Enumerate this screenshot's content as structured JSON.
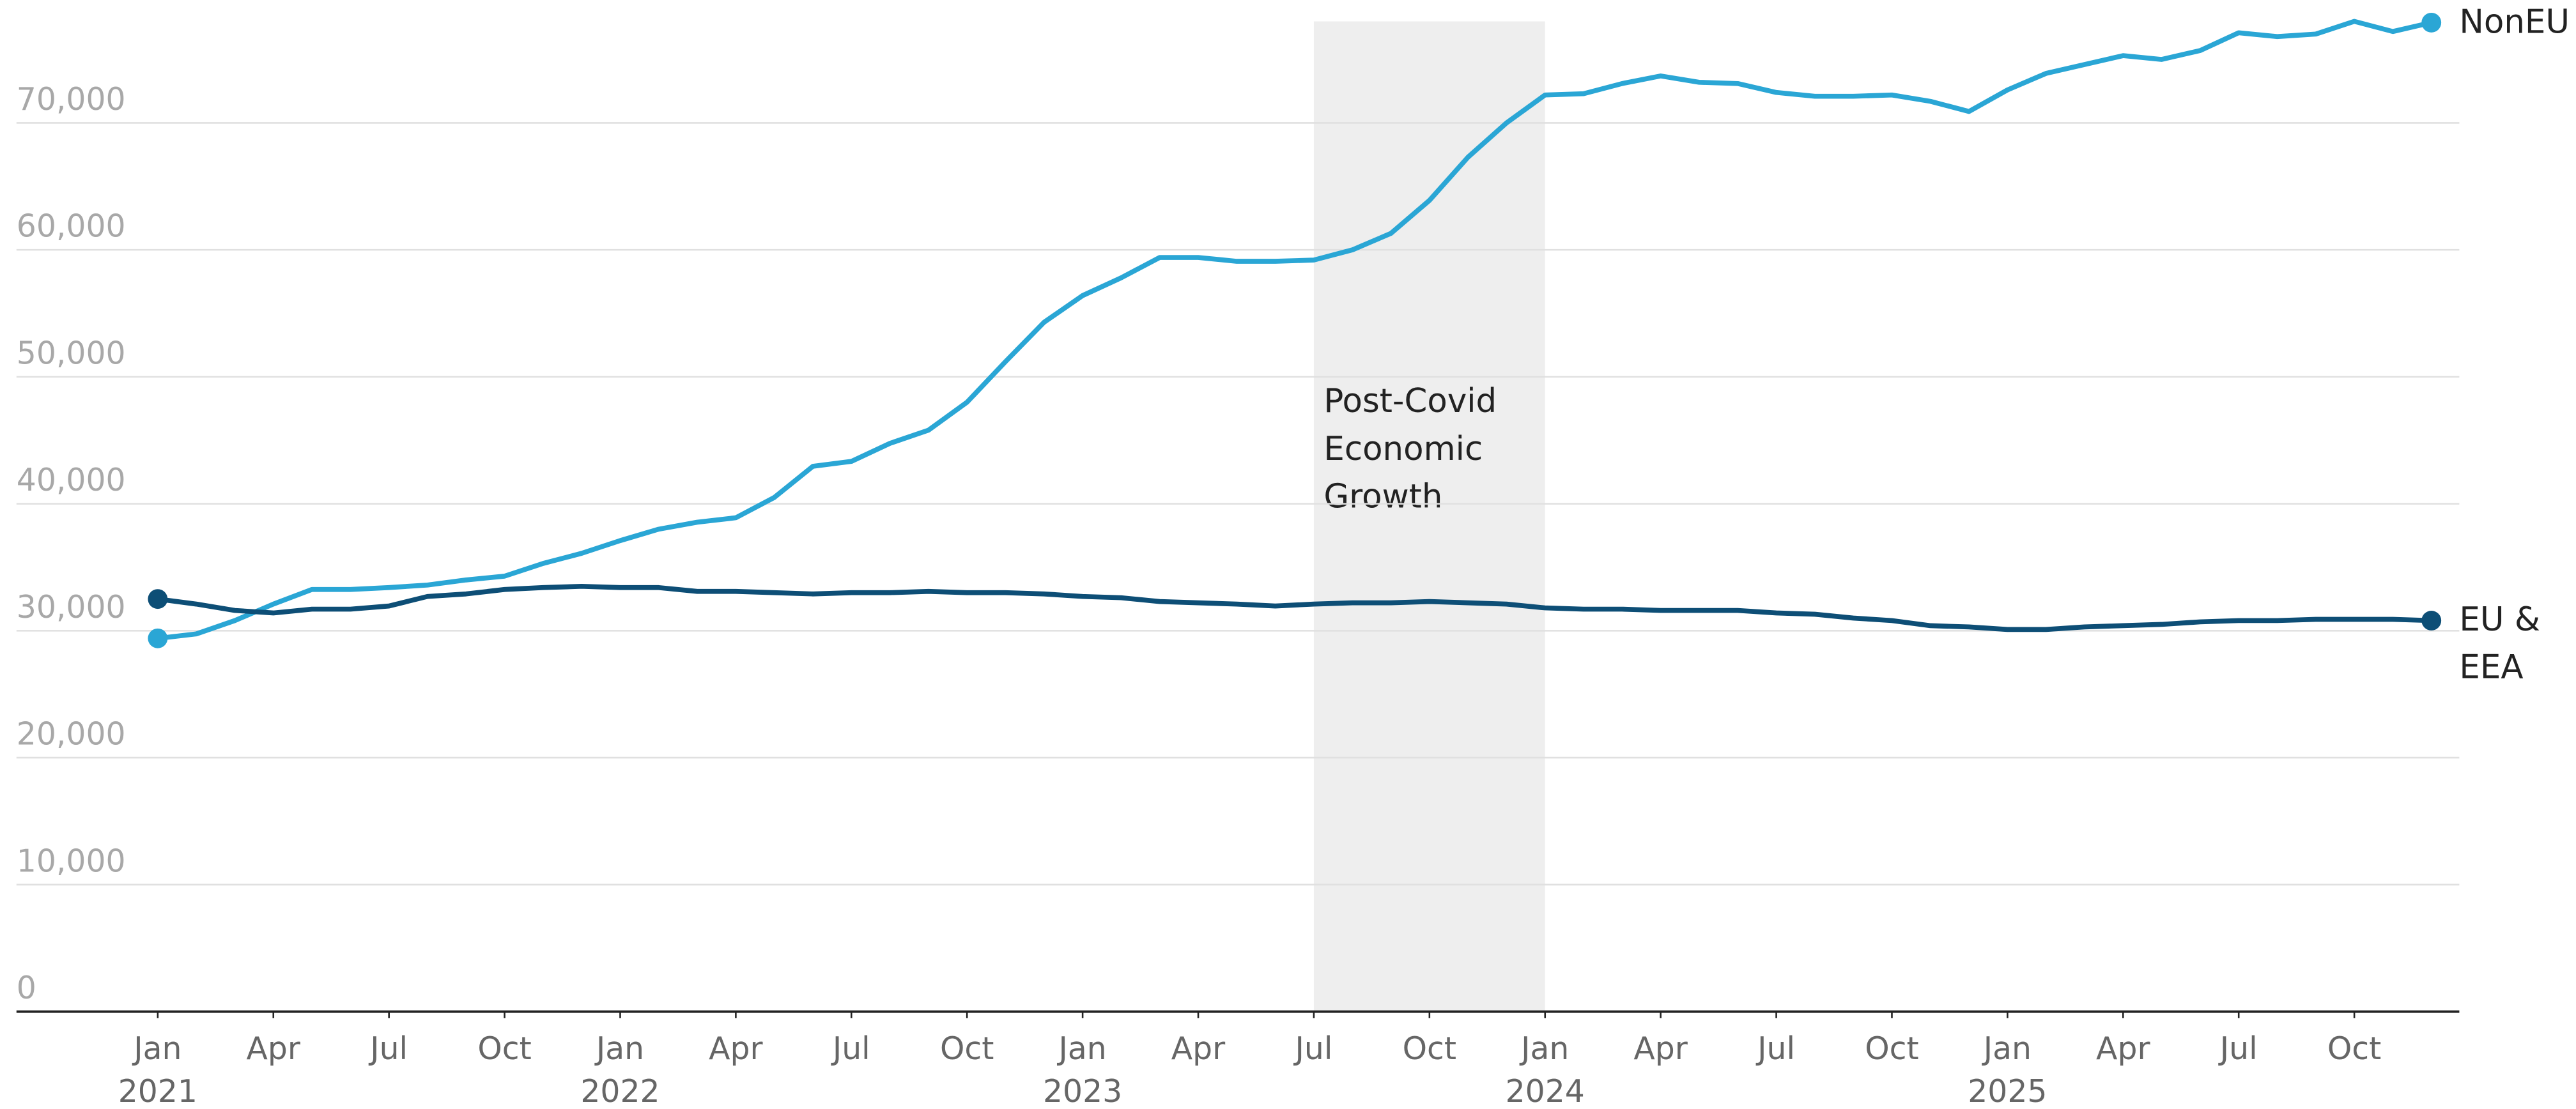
{
  "chart_data": {
    "type": "line",
    "x": [
      "2021-01",
      "2021-02",
      "2021-03",
      "2021-04",
      "2021-05",
      "2021-06",
      "2021-07",
      "2021-08",
      "2021-09",
      "2021-10",
      "2021-11",
      "2021-12",
      "2022-01",
      "2022-02",
      "2022-03",
      "2022-04",
      "2022-05",
      "2022-06",
      "2022-07",
      "2022-08",
      "2022-09",
      "2022-10",
      "2022-11",
      "2022-12",
      "2023-01",
      "2023-02",
      "2023-03",
      "2023-04",
      "2023-05",
      "2023-06",
      "2023-07",
      "2023-08",
      "2023-09",
      "2023-10",
      "2023-11",
      "2023-12",
      "2024-01",
      "2024-02",
      "2024-03",
      "2024-04",
      "2024-05",
      "2024-06",
      "2024-07",
      "2024-08",
      "2024-09",
      "2024-10",
      "2024-11",
      "2024-12",
      "2025-01",
      "2025-02",
      "2025-03",
      "2025-04",
      "2025-05",
      "2025-06",
      "2025-07",
      "2025-08",
      "2025-09",
      "2025-10",
      "2025-11",
      "2025-12"
    ],
    "series": [
      {
        "name": "NonEU",
        "color": "#2aa6d5",
        "values": [
          29400,
          29750,
          30800,
          32100,
          33250,
          33250,
          33400,
          33600,
          34000,
          34300,
          35300,
          36100,
          37100,
          38000,
          38550,
          38900,
          40500,
          42950,
          43340,
          44760,
          45800,
          48000,
          51200,
          54300,
          56400,
          57800,
          59400,
          59400,
          59100,
          59100,
          59200,
          60000,
          61300,
          63900,
          67300,
          70000,
          72200,
          72300,
          73100,
          73700,
          73200,
          73100,
          72400,
          72100,
          72100,
          72200,
          71700,
          70900,
          72600,
          73900,
          74600,
          75300,
          75000,
          75700,
          77100,
          76800,
          77000,
          78000,
          77200,
          77900
        ]
      },
      {
        "name": "EU & EEA",
        "color": "#0d4e76",
        "values": [
          32500,
          32100,
          31600,
          31400,
          31700,
          31700,
          31950,
          32700,
          32900,
          33250,
          33400,
          33500,
          33400,
          33400,
          33100,
          33100,
          33000,
          32900,
          33000,
          33000,
          33100,
          33000,
          33000,
          32900,
          32700,
          32600,
          32300,
          32200,
          32100,
          31950,
          32100,
          32200,
          32200,
          32300,
          32200,
          32100,
          31800,
          31700,
          31700,
          31600,
          31600,
          31600,
          31400,
          31300,
          31000,
          30800,
          30400,
          30300,
          30100,
          30100,
          30300,
          30400,
          30500,
          30700,
          30800,
          30800,
          30900,
          30900,
          30900,
          30800
        ]
      }
    ],
    "xlim": [
      "2021-01",
      "2025-12"
    ],
    "ylim": [
      0,
      78000
    ],
    "yticks": [
      0,
      {
        "value": 10000,
        "label": "10,000"
      },
      {
        "value": 20000,
        "label": "20,000"
      },
      {
        "value": 30000,
        "label": "30,000"
      },
      {
        "value": 40000,
        "label": "40,000"
      },
      {
        "value": 50000,
        "label": "50,000"
      },
      {
        "value": 60000,
        "label": "60,000"
      },
      {
        "value": 70000,
        "label": "70,000"
      }
    ],
    "xticks": [
      {
        "value": "2021-01",
        "label": "Jan",
        "year": "2021"
      },
      {
        "value": "2021-04",
        "label": "Apr"
      },
      {
        "value": "2021-07",
        "label": "Jul"
      },
      {
        "value": "2021-10",
        "label": "Oct"
      },
      {
        "value": "2022-01",
        "label": "Jan",
        "year": "2022"
      },
      {
        "value": "2022-04",
        "label": "Apr"
      },
      {
        "value": "2022-07",
        "label": "Jul"
      },
      {
        "value": "2022-10",
        "label": "Oct"
      },
      {
        "value": "2023-01",
        "label": "Jan",
        "year": "2023"
      },
      {
        "value": "2023-04",
        "label": "Apr"
      },
      {
        "value": "2023-07",
        "label": "Jul"
      },
      {
        "value": "2023-10",
        "label": "Oct"
      },
      {
        "value": "2024-01",
        "label": "Jan",
        "year": "2024"
      },
      {
        "value": "2024-04",
        "label": "Apr"
      },
      {
        "value": "2024-07",
        "label": "Jul"
      },
      {
        "value": "2024-10",
        "label": "Oct"
      },
      {
        "value": "2025-01",
        "label": "Jan",
        "year": "2025"
      },
      {
        "value": "2025-04",
        "label": "Apr"
      },
      {
        "value": "2025-07",
        "label": "Jul"
      },
      {
        "value": "2025-10",
        "label": "Oct"
      }
    ],
    "grid": true,
    "highlight": {
      "start": "2023-07",
      "end": "2024-01",
      "label": "Post-Covid Economic Growth",
      "color": "#eeeeee"
    }
  }
}
